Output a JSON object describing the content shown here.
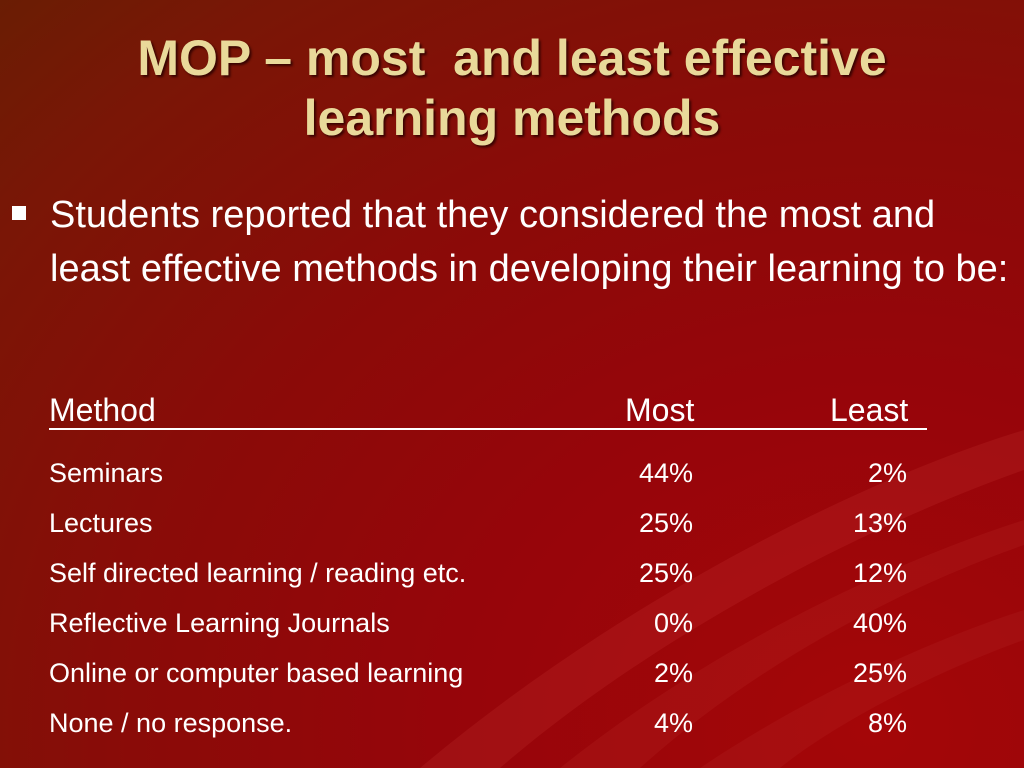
{
  "slide": {
    "title": "MOP – most  and least effective\nlearning methods",
    "bullet": "Students reported that they considered the most and least effective methods in developing their learning to be:"
  },
  "table": {
    "headers": {
      "method": "Method",
      "most": "Most",
      "least": "Least"
    },
    "rows": [
      {
        "method": "Seminars",
        "most": "44%",
        "least": "2%"
      },
      {
        "method": "Lectures",
        "most": "25%",
        "least": "13%"
      },
      {
        "method": "Self directed learning / reading etc.",
        "most": "25%",
        "least": "12%"
      },
      {
        "method": "Reflective Learning Journals",
        "most": "0%",
        "least": "40%"
      },
      {
        "method": "Online or computer based learning",
        "most": "2%",
        "least": "25%"
      },
      {
        "method": "None / no response.",
        "most": "4%",
        "least": "8%"
      }
    ]
  },
  "colors": {
    "title": "#e9d99a",
    "background": "#8a0b08",
    "text": "#ffffff"
  }
}
